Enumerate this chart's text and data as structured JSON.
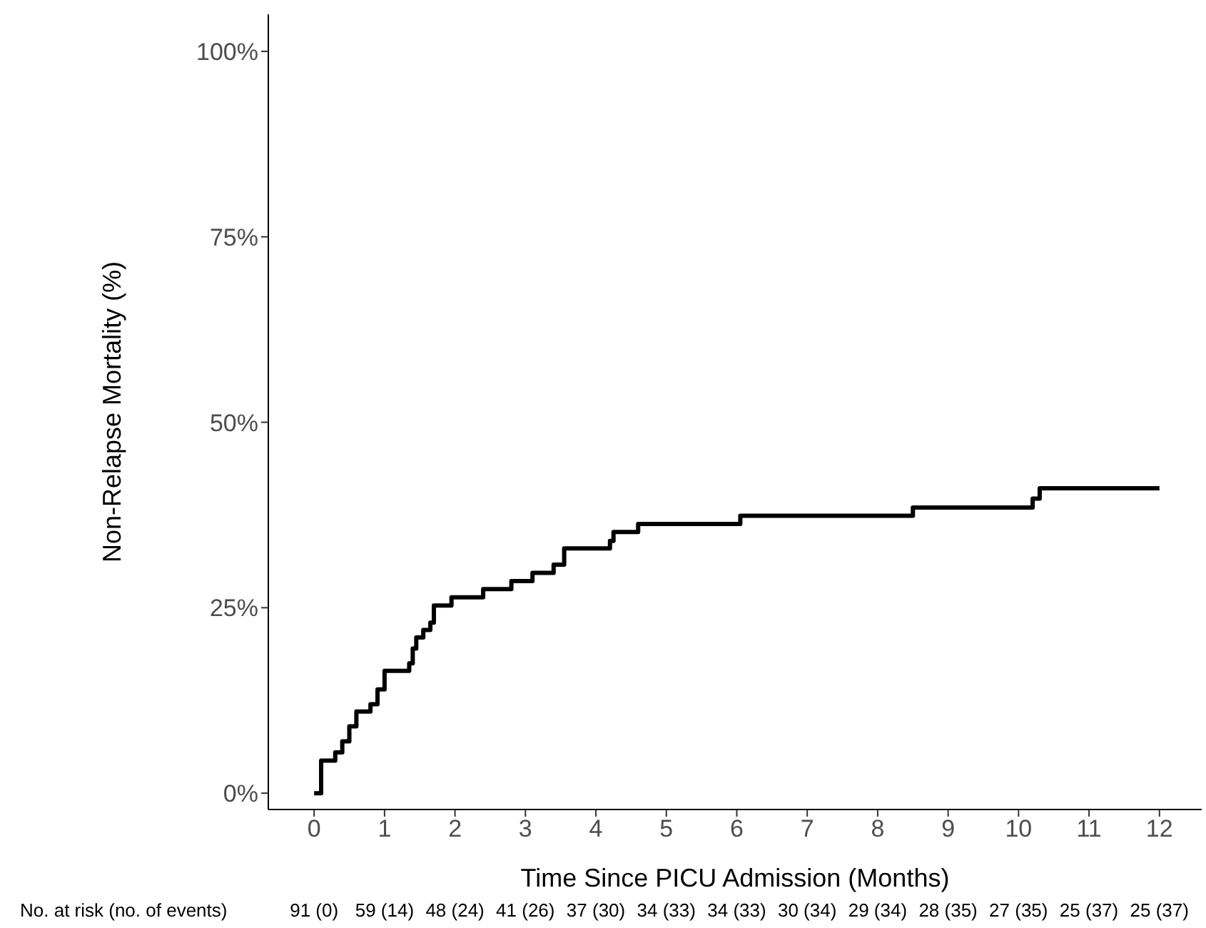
{
  "chart_data": {
    "type": "step",
    "xlabel": "Time Since PICU Admission (Months)",
    "ylabel": "Non-Relapse Mortality (%)",
    "xlim": [
      -0.65,
      12.6
    ],
    "xticks": [
      0,
      1,
      2,
      3,
      4,
      5,
      6,
      7,
      8,
      9,
      10,
      11,
      12
    ],
    "ylim": [
      -2.2,
      105
    ],
    "yticks": [
      {
        "value": 0,
        "label": "0%"
      },
      {
        "value": 25,
        "label": "25%"
      },
      {
        "value": 50,
        "label": "50%"
      },
      {
        "value": 75,
        "label": "75%"
      },
      {
        "value": 100,
        "label": "100%"
      }
    ],
    "marker": "none",
    "line_style": "solid",
    "series": [
      {
        "color": "#000000",
        "x": [
          0,
          0.07,
          0.1,
          0.3,
          0.4,
          0.5,
          0.6,
          0.8,
          0.9,
          1.0,
          1.35,
          1.4,
          1.45,
          1.55,
          1.65,
          1.7,
          1.95,
          2.4,
          2.8,
          3.1,
          3.4,
          3.55,
          4.2,
          4.25,
          4.6,
          6.05,
          8.5,
          10.2,
          10.3,
          12
        ],
        "values": [
          0,
          0,
          4.4,
          5.5,
          7,
          9,
          11,
          12,
          14,
          16.5,
          17.5,
          19.5,
          21,
          22,
          23,
          25.3,
          26.4,
          27.5,
          28.6,
          29.7,
          30.8,
          33,
          34,
          35.2,
          36.3,
          37.4,
          38.5,
          39.7,
          41.1,
          41.1
        ]
      }
    ],
    "annotations": [
      "No. at risk (no. of events)",
      "91 (0)",
      "59 (14)",
      "48 (24)",
      "41 (26)",
      "37 (30)",
      "34 (33)",
      "34 (33)",
      "30 (34)",
      "29 (34)",
      "28 (35)",
      "27 (35)",
      "25 (37)",
      "25 (37)"
    ]
  }
}
